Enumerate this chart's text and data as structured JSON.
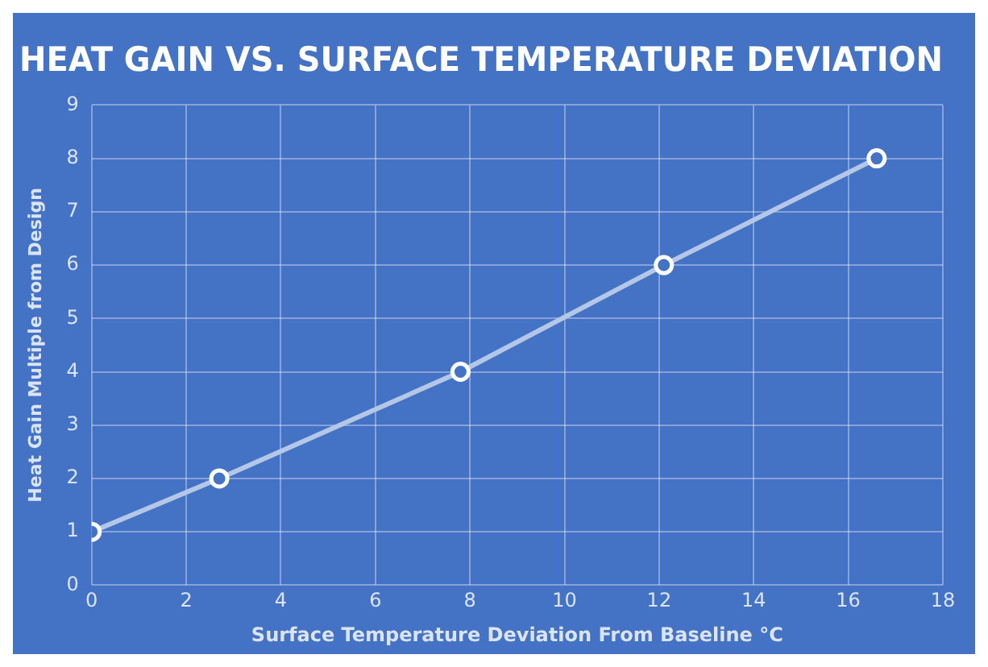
{
  "chart_data": {
    "type": "line",
    "title": "HEAT GAIN VS. SURFACE TEMPERATURE DEVIATION",
    "xlabel": "Surface Temperature Deviation From Baseline °C",
    "ylabel": "Heat Gain Multiple from Design",
    "x": [
      0,
      2.7,
      7.8,
      12.1,
      16.6
    ],
    "series": [
      {
        "color": "#b4c7e7",
        "values": [
          1,
          2,
          4,
          6,
          8
        ]
      }
    ],
    "xlim": [
      0,
      18
    ],
    "xticks": [
      0,
      2,
      4,
      6,
      8,
      10,
      12,
      14,
      16,
      18
    ],
    "ylim": [
      0,
      9
    ],
    "yticks": [
      0,
      1,
      2,
      3,
      4,
      5,
      6,
      7,
      8,
      9
    ],
    "grid": true,
    "legend": false,
    "marker": "circle",
    "line_style": "solid"
  }
}
